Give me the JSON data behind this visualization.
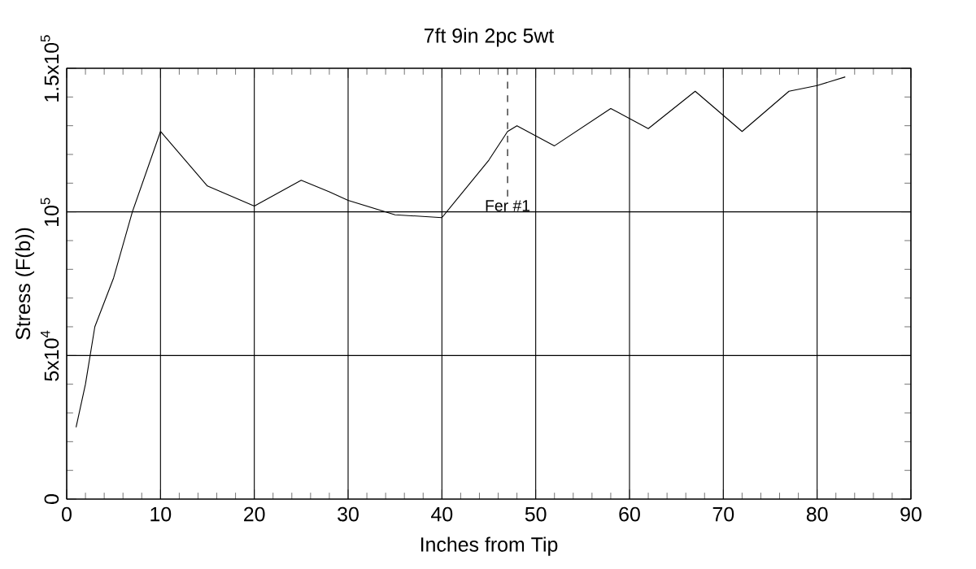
{
  "chart_data": {
    "type": "line",
    "title": "7ft 9in 2pc 5wt",
    "xlabel": "Inches from Tip",
    "ylabel": "Stress (F(b))",
    "x": [
      1,
      2,
      3,
      5,
      7,
      10,
      15,
      20,
      25,
      28,
      30,
      35,
      40,
      45,
      47,
      48,
      52,
      58,
      62,
      67,
      72,
      77,
      80,
      83
    ],
    "values": [
      25000,
      40000,
      60000,
      77000,
      100000,
      128000,
      109000,
      102000,
      111000,
      107000,
      104000,
      99000,
      98000,
      118000,
      128000,
      130000,
      123000,
      136000,
      129000,
      142000,
      128000,
      142000,
      144000,
      147000
    ],
    "color": "#000000",
    "xlim": [
      0,
      90
    ],
    "ylim": [
      0,
      150000
    ],
    "xticks": [
      0,
      10,
      20,
      30,
      40,
      50,
      60,
      70,
      80,
      90
    ],
    "yticks": [
      0,
      {
        "value": 50000,
        "label": "5x10$^{4}$"
      },
      {
        "value": 100000,
        "label": "10$^{5}$"
      },
      {
        "value": 150000,
        "label": "1.5x10$^{5}$"
      }
    ],
    "grid": true,
    "marker": "none",
    "line_style": "solid",
    "ref_lines": [
      {
        "axis": "x",
        "value": 47,
        "label": "Fer #1",
        "line_style": "dashed"
      }
    ]
  }
}
